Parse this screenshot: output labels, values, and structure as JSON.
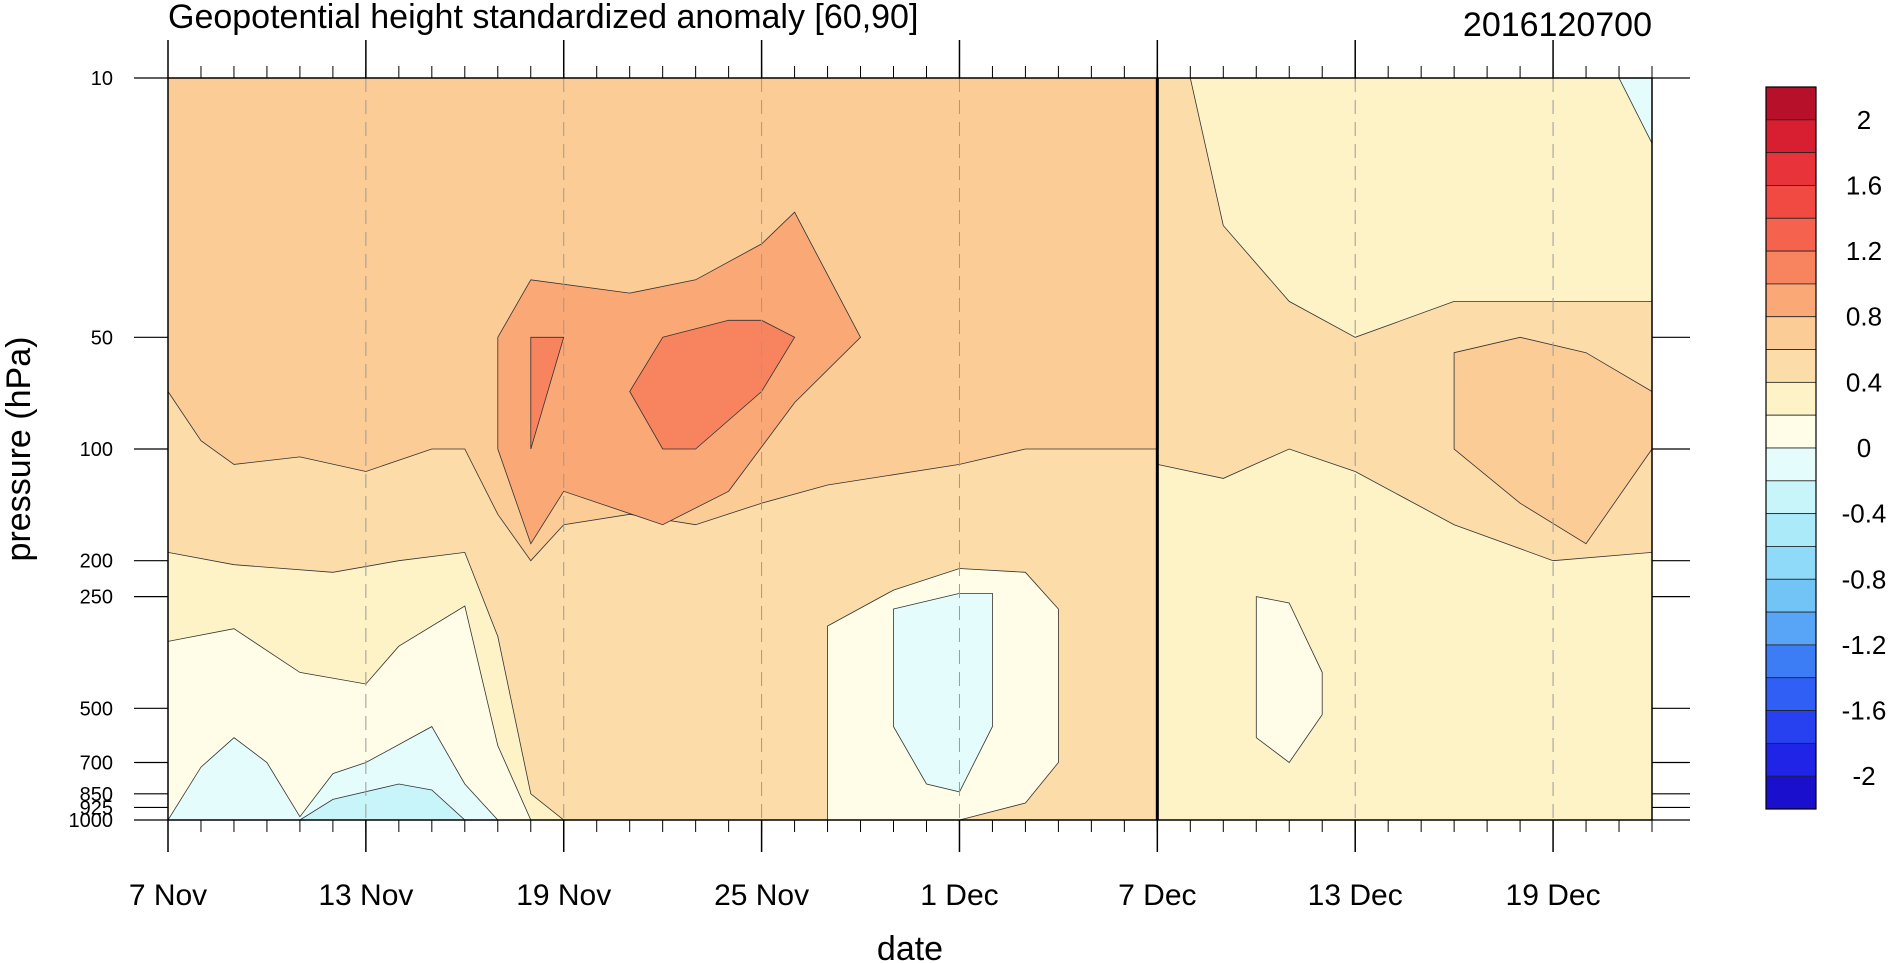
{
  "chart_data": {
    "type": "heatmap",
    "title": "Geopotential height standardized anomaly [60,90]",
    "date_label": "2016120700",
    "xlabel": "date",
    "ylabel": "pressure (hPa)",
    "y_scale": "log",
    "y_inverted": true,
    "ylim": [
      1000,
      10
    ],
    "xlim": [
      "2016-11-07",
      "2016-12-22"
    ],
    "x_tick_dates": [
      "2016-11-07",
      "2016-11-13",
      "2016-11-19",
      "2016-11-25",
      "2016-12-01",
      "2016-12-07",
      "2016-12-13",
      "2016-12-19"
    ],
    "x_tick_labels": [
      "7 Nov",
      "13 Nov",
      "19 Nov",
      "25 Nov",
      "1 Dec",
      "7 Dec",
      "13 Dec",
      "19 Dec"
    ],
    "y_ticks": [
      10,
      50,
      100,
      200,
      250,
      500,
      700,
      850,
      925,
      1000
    ],
    "y_tick_labels": [
      "10",
      "50",
      "100",
      "200",
      "250",
      "500",
      "700",
      "850",
      "925",
      "1000"
    ],
    "vertical_marker_date": "2016-12-07",
    "grid": "dashed vertical lines at date ticks",
    "colorbar": {
      "levels": [
        -2.2,
        -2.0,
        -1.8,
        -1.6,
        -1.4,
        -1.2,
        -1.0,
        -0.8,
        -0.6,
        -0.4,
        -0.2,
        0.0,
        0.2,
        0.4,
        0.6,
        0.8,
        1.0,
        1.2,
        1.4,
        1.6,
        1.8,
        2.0,
        2.2
      ],
      "labels": [
        "2",
        "1.6",
        "1.2",
        "0.8",
        "0.4",
        "0",
        "-0.4",
        "-0.8",
        "-1.2",
        "-1.6",
        "-2"
      ],
      "label_values": [
        2.0,
        1.6,
        1.2,
        0.8,
        0.4,
        0.0,
        -0.4,
        -0.8,
        -1.2,
        -1.6,
        -2.0
      ],
      "colors": [
        "#1a0fcc",
        "#1f24e6",
        "#2740f0",
        "#2f5ff5",
        "#3c7df6",
        "#58a4f7",
        "#72c3f6",
        "#8fdaf8",
        "#aaeaf9",
        "#c8f5fa",
        "#e4fcfc",
        "#fffde8",
        "#fdf3c7",
        "#fcdca8",
        "#fbcc96",
        "#f9a876",
        "#f7835f",
        "#f5634e",
        "#f14a43",
        "#e8333a",
        "#d81e31",
        "#b7102a"
      ]
    },
    "regions": [
      {
        "label": "0.2 to 0.4",
        "value": 0.3,
        "outline": [
          [
            "2016-11-07",
            190
          ],
          [
            "2016-11-09",
            205
          ],
          [
            "2016-11-12",
            215
          ],
          [
            "2016-11-14",
            200
          ],
          [
            "2016-11-16",
            190
          ],
          [
            "2016-11-17",
            320
          ],
          [
            "2016-11-18",
            850
          ],
          [
            "2016-11-19",
            1000
          ],
          [
            "2016-11-07",
            1000
          ]
        ]
      },
      {
        "label": "0 to 0.2",
        "value": 0.1,
        "outline": [
          [
            "2016-11-07",
            330
          ],
          [
            "2016-11-09",
            305
          ],
          [
            "2016-11-11",
            400
          ],
          [
            "2016-11-13",
            430
          ],
          [
            "2016-11-14",
            340
          ],
          [
            "2016-11-16",
            265
          ],
          [
            "2016-11-17",
            630
          ],
          [
            "2016-11-18",
            1000
          ],
          [
            "2016-11-07",
            1000
          ]
        ]
      },
      {
        "label": "-0.2 to 0",
        "value": -0.1,
        "outline": [
          [
            "2016-11-07",
            1000
          ],
          [
            "2016-11-08",
            720
          ],
          [
            "2016-11-09",
            600
          ],
          [
            "2016-11-10",
            700
          ],
          [
            "2016-11-11",
            980
          ],
          [
            "2016-11-12",
            750
          ],
          [
            "2016-11-13",
            700
          ],
          [
            "2016-11-15",
            560
          ],
          [
            "2016-11-16",
            800
          ],
          [
            "2016-11-17",
            1000
          ]
        ]
      },
      {
        "label": "-0.4 to -0.2",
        "value": -0.3,
        "outline": [
          [
            "2016-11-11",
            1000
          ],
          [
            "2016-11-12",
            880
          ],
          [
            "2016-11-14",
            800
          ],
          [
            "2016-11-15",
            830
          ],
          [
            "2016-11-16",
            1000
          ]
        ]
      },
      {
        "label": "0.6 to 0.8",
        "value": 0.7,
        "outline": [
          [
            "2016-11-07",
            70
          ],
          [
            "2016-11-08",
            95
          ],
          [
            "2016-11-09",
            110
          ],
          [
            "2016-11-11",
            105
          ],
          [
            "2016-11-13",
            115
          ],
          [
            "2016-11-15",
            100
          ],
          [
            "2016-11-16",
            100
          ],
          [
            "2016-11-17",
            150
          ],
          [
            "2016-11-18",
            200
          ],
          [
            "2016-11-19",
            160
          ],
          [
            "2016-11-21",
            150
          ],
          [
            "2016-11-23",
            160
          ],
          [
            "2016-11-25",
            140
          ],
          [
            "2016-11-27",
            125
          ],
          [
            "2016-12-01",
            110
          ],
          [
            "2016-12-03",
            100
          ],
          [
            "2016-12-05",
            100
          ],
          [
            "2016-12-07",
            100
          ],
          [
            "2016-12-07",
            10
          ],
          [
            "2016-11-07",
            10
          ]
        ]
      },
      {
        "label": "0.8 to 1.0",
        "value": 0.9,
        "outline": [
          [
            "2016-11-17",
            50
          ],
          [
            "2016-11-18",
            35
          ],
          [
            "2016-11-21",
            38
          ],
          [
            "2016-11-23",
            35
          ],
          [
            "2016-11-25",
            28
          ],
          [
            "2016-11-26",
            23
          ],
          [
            "2016-11-28",
            50
          ],
          [
            "2016-11-26",
            75
          ],
          [
            "2016-11-24",
            130
          ],
          [
            "2016-11-22",
            160
          ],
          [
            "2016-11-19",
            130
          ],
          [
            "2016-11-18",
            180
          ],
          [
            "2016-11-17",
            100
          ]
        ]
      },
      {
        "label": "1.0 to 1.2",
        "value": 1.1,
        "outline": [
          [
            "2016-11-22",
            50
          ],
          [
            "2016-11-24",
            45
          ],
          [
            "2016-11-25",
            45
          ],
          [
            "2016-11-26",
            50
          ],
          [
            "2016-11-25",
            70
          ],
          [
            "2016-11-23",
            100
          ],
          [
            "2016-11-22",
            100
          ],
          [
            "2016-11-21",
            70
          ]
        ]
      },
      {
        "label": "1.0 to 1.2",
        "value": 1.1,
        "outline": [
          [
            "2016-11-18",
            50
          ],
          [
            "2016-11-19",
            50
          ],
          [
            "2016-11-18",
            100
          ]
        ]
      },
      {
        "label": "0 to 0.2",
        "value": 0.1,
        "outline": [
          [
            "2016-11-27",
            300
          ],
          [
            "2016-11-29",
            240
          ],
          [
            "2016-12-01",
            210
          ],
          [
            "2016-12-03",
            215
          ],
          [
            "2016-12-04",
            270
          ],
          [
            "2016-12-04",
            700
          ],
          [
            "2016-12-03",
            900
          ],
          [
            "2016-12-01",
            1000
          ],
          [
            "2016-11-27",
            1000
          ]
        ]
      },
      {
        "label": "-0.2 to 0",
        "value": -0.1,
        "outline": [
          [
            "2016-11-29",
            270
          ],
          [
            "2016-12-01",
            245
          ],
          [
            "2016-12-02",
            245
          ],
          [
            "2016-12-02",
            560
          ],
          [
            "2016-12-01",
            840
          ],
          [
            "2016-11-30",
            800
          ],
          [
            "2016-11-29",
            560
          ]
        ]
      },
      {
        "label": "0.2 to 0.4",
        "value": 0.3,
        "outline": [
          [
            "2016-12-07",
            110
          ],
          [
            "2016-12-09",
            120
          ],
          [
            "2016-12-11",
            100
          ],
          [
            "2016-12-13",
            115
          ],
          [
            "2016-12-16",
            160
          ],
          [
            "2016-12-19",
            200
          ],
          [
            "2016-12-22",
            190
          ],
          [
            "2016-12-22",
            1000
          ],
          [
            "2016-12-07",
            1000
          ]
        ]
      },
      {
        "label": "0 to 0.2",
        "value": 0.1,
        "outline": [
          [
            "2016-12-10",
            250
          ],
          [
            "2016-12-11",
            260
          ],
          [
            "2016-12-12",
            400
          ],
          [
            "2016-12-12",
            520
          ],
          [
            "2016-12-11",
            700
          ],
          [
            "2016-12-10",
            600
          ]
        ]
      },
      {
        "label": "0 to 0.2",
        "value": 0.1,
        "outline": [
          [
            "2016-12-12",
            10
          ],
          [
            "2016-12-14",
            12
          ],
          [
            "2016-12-16",
            14
          ],
          [
            "2016-12-19",
            22
          ],
          [
            "2016-12-22",
            30
          ],
          [
            "2016-12-22",
            10
          ]
        ]
      },
      {
        "label": "0.6 to 0.8",
        "value": 0.7,
        "outline": [
          [
            "2016-12-16",
            55
          ],
          [
            "2016-12-18",
            50
          ],
          [
            "2016-12-20",
            55
          ],
          [
            "2016-12-22",
            70
          ],
          [
            "2016-12-22",
            100
          ],
          [
            "2016-12-20",
            180
          ],
          [
            "2016-12-18",
            140
          ],
          [
            "2016-12-16",
            100
          ]
        ]
      },
      {
        "label": "0.2 to 0.4",
        "value": 0.3,
        "outline": [
          [
            "2016-12-08",
            10
          ],
          [
            "2016-12-09",
            25
          ],
          [
            "2016-12-11",
            40
          ],
          [
            "2016-12-13",
            50
          ],
          [
            "2016-12-16",
            40
          ],
          [
            "2016-12-19",
            40
          ],
          [
            "2016-12-22",
            40
          ],
          [
            "2016-12-22",
            10
          ]
        ]
      },
      {
        "label": "-0.2 to 0",
        "value": -0.1,
        "outline": [
          [
            "2016-12-21",
            10
          ],
          [
            "2016-12-22",
            10
          ],
          [
            "2016-12-22",
            15
          ]
        ]
      }
    ]
  }
}
